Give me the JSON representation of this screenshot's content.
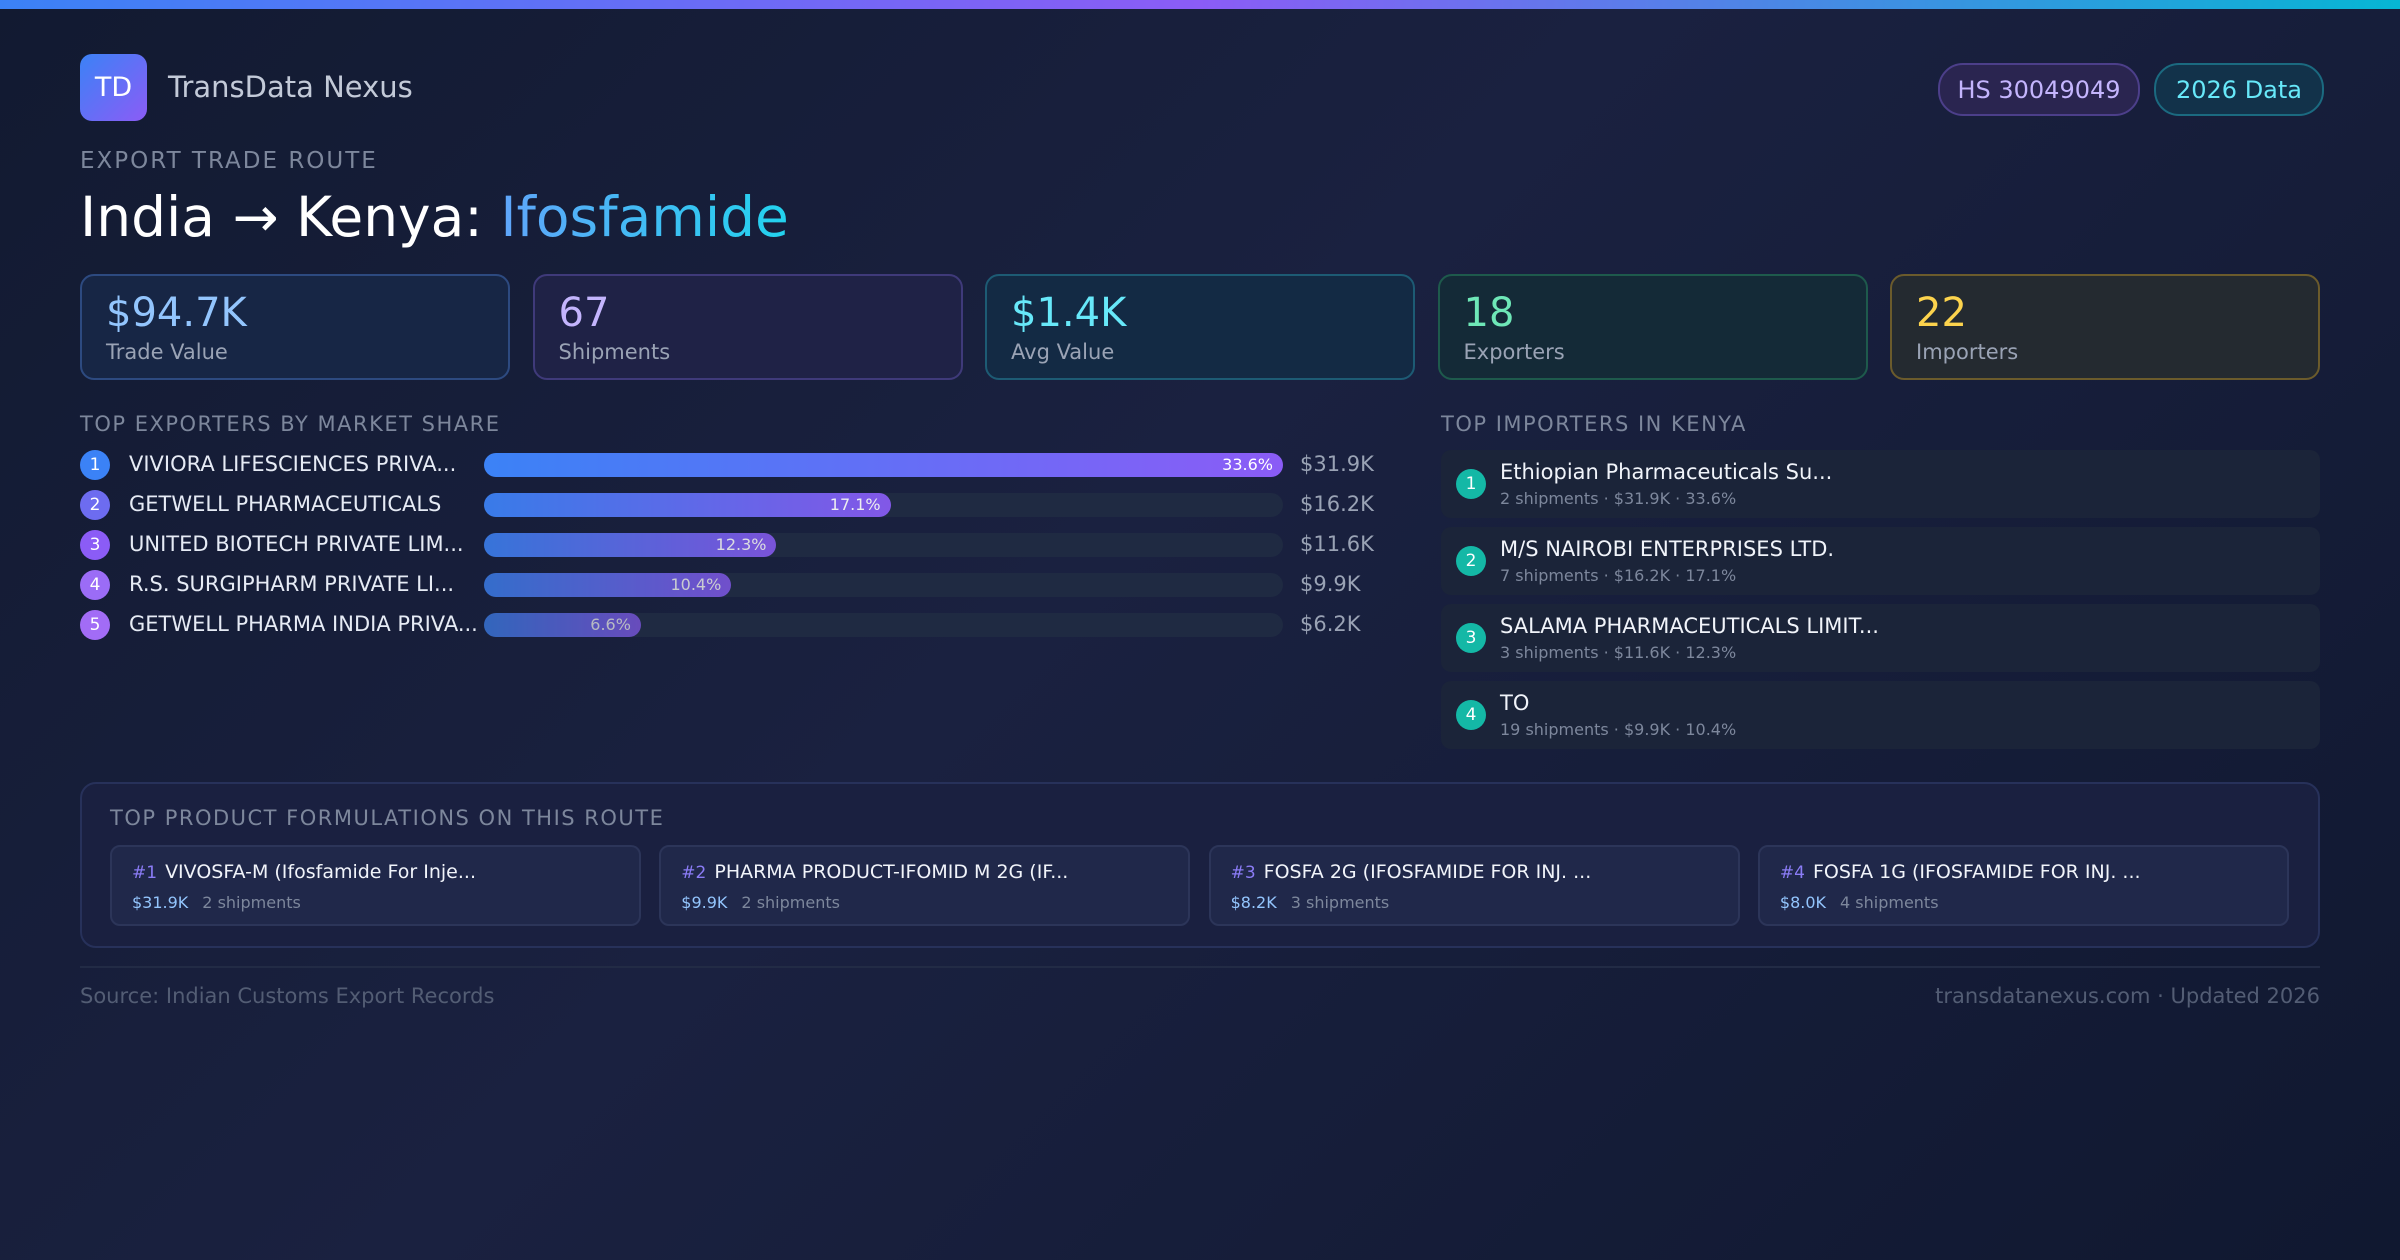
{
  "header": {
    "logo": "TD",
    "brand": "TransData Nexus",
    "badges": [
      "HS 30049049",
      "2026 Data"
    ]
  },
  "route": {
    "eyebrow": "EXPORT TRADE ROUTE",
    "title_prefix": "India → Kenya:",
    "title_product": "Ifosfamide"
  },
  "stats": [
    {
      "value": "$94.7K",
      "label": "Trade Value"
    },
    {
      "value": "67",
      "label": "Shipments"
    },
    {
      "value": "$1.4K",
      "label": "Avg Value"
    },
    {
      "value": "18",
      "label": "Exporters"
    },
    {
      "value": "22",
      "label": "Importers"
    }
  ],
  "exporters": {
    "title": "TOP EXPORTERS BY MARKET SHARE",
    "rows": [
      {
        "rank": "1",
        "name": "VIVIORA LIFESCIENCES PRIVA...",
        "share": 33.6,
        "share_label": "33.6%",
        "value": "$31.9K"
      },
      {
        "rank": "2",
        "name": "GETWELL PHARMACEUTICALS",
        "share": 17.1,
        "share_label": "17.1%",
        "value": "$16.2K"
      },
      {
        "rank": "3",
        "name": "UNITED BIOTECH PRIVATE LIM...",
        "share": 12.3,
        "share_label": "12.3%",
        "value": "$11.6K"
      },
      {
        "rank": "4",
        "name": "R.S. SURGIPHARM PRIVATE LI...",
        "share": 10.4,
        "share_label": "10.4%",
        "value": "$9.9K"
      },
      {
        "rank": "5",
        "name": "GETWELL PHARMA INDIA PRIVA...",
        "share": 6.6,
        "share_label": "6.6%",
        "value": "$6.2K"
      }
    ]
  },
  "importers": {
    "title": "TOP IMPORTERS IN KENYA",
    "rows": [
      {
        "rank": "1",
        "name": "Ethiopian Pharmaceuticals Su...",
        "detail": "2 shipments · $31.9K · 33.6%"
      },
      {
        "rank": "2",
        "name": "M/S NAIROBI ENTERPRISES LTD.",
        "detail": "7 shipments · $16.2K · 17.1%"
      },
      {
        "rank": "3",
        "name": "SALAMA PHARMACEUTICALS LIMIT...",
        "detail": "3 shipments · $11.6K · 12.3%"
      },
      {
        "rank": "4",
        "name": "TO",
        "detail": "19 shipments · $9.9K · 10.4%"
      }
    ]
  },
  "products": {
    "title": "TOP PRODUCT FORMULATIONS ON THIS ROUTE",
    "rows": [
      {
        "rank": "#1",
        "name": "VIVOSFA-M (Ifosfamide For Inje...",
        "value": "$31.9K",
        "shipments": "2 shipments"
      },
      {
        "rank": "#2",
        "name": "PHARMA PRODUCT-IFOMID M 2G (IF...",
        "value": "$9.9K",
        "shipments": "2 shipments"
      },
      {
        "rank": "#3",
        "name": "FOSFA 2G (IFOSFAMIDE FOR INJ. ...",
        "value": "$8.2K",
        "shipments": "3 shipments"
      },
      {
        "rank": "#4",
        "name": "FOSFA 1G (IFOSFAMIDE FOR INJ. ...",
        "value": "$8.0K",
        "shipments": "4 shipments"
      }
    ]
  },
  "footer": {
    "source": "Source: Indian Customs Export Records",
    "site": "transdatanexus.com · Updated 2026"
  }
}
